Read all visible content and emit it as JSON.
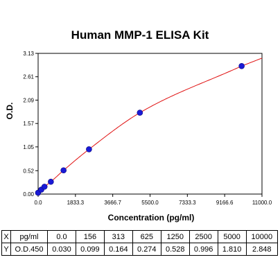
{
  "chart_data": {
    "type": "scatter",
    "title": "Human MMP-1 ELISA Kit",
    "xlabel": "Concentration (pg/ml)",
    "ylabel": "O.D.",
    "xlim": [
      0,
      11000
    ],
    "ylim": [
      0,
      3.13
    ],
    "xticks": [
      "0.0",
      "1833.3",
      "3666.7",
      "5500.0",
      "7333.3",
      "9166.6",
      "11000.0"
    ],
    "yticks": [
      "0.00",
      "0.52",
      "1.05",
      "1.57",
      "2.09",
      "2.61",
      "3.13"
    ],
    "x": [
      0,
      156,
      313,
      625,
      1250,
      2500,
      5000,
      10000
    ],
    "y": [
      0.03,
      0.099,
      0.164,
      0.274,
      0.528,
      0.996,
      1.81,
      2.848
    ],
    "fit_curve": true,
    "grid": false,
    "colors": {
      "points": "#1a1ad6",
      "curve": "#e01010",
      "axes": "#000000"
    }
  },
  "table": {
    "rows": [
      {
        "head": "X",
        "unit": "pg/ml",
        "values": [
          "0.0",
          "156",
          "313",
          "625",
          "1250",
          "2500",
          "5000",
          "10000"
        ]
      },
      {
        "head": "Y",
        "unit": "O.D.450",
        "values": [
          "0.030",
          "0.099",
          "0.164",
          "0.274",
          "0.528",
          "0.996",
          "1.810",
          "2.848"
        ]
      }
    ]
  }
}
